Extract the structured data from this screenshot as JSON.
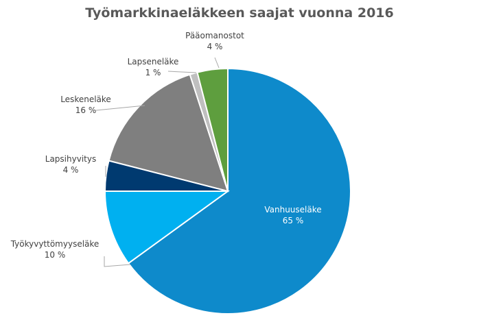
{
  "chart_data": {
    "type": "pie",
    "title": "Työmarkkinaeläkkeen saajat vuonna 2016",
    "slices": [
      {
        "label": "Vanhuuseläke",
        "value": 65,
        "value_label": "65 %",
        "color": "#0E8ACB"
      },
      {
        "label": "Työkyvyttömyyseläke",
        "value": 10,
        "value_label": "10 %",
        "color": "#00B0F0"
      },
      {
        "label": "Lapsihyvitys",
        "value": 4,
        "value_label": "4 %",
        "color": "#003A70"
      },
      {
        "label": "Leskeneläke",
        "value": 16,
        "value_label": "16 %",
        "color": "#7F7F7F"
      },
      {
        "label": "Lapseneläke",
        "value": 1,
        "value_label": "1 %",
        "color": "#BFBFBF"
      },
      {
        "label": "Pääomanostot",
        "value": 4,
        "value_label": "4 %",
        "color": "#5E9E3E"
      }
    ]
  }
}
